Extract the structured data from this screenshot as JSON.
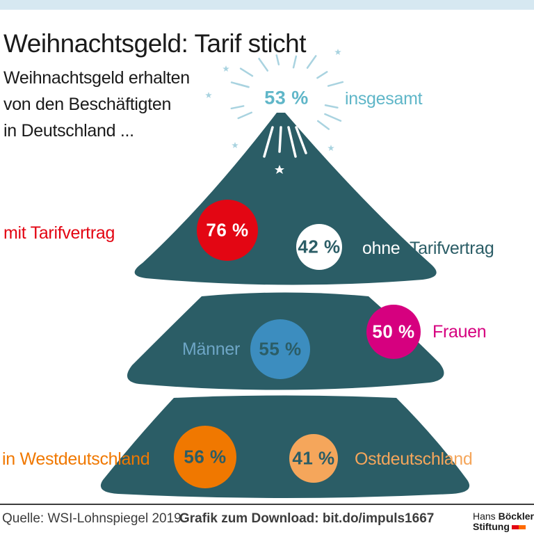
{
  "header": {
    "title": "Weihnachtsgeld: Tarif sticht",
    "subtitle_lines": [
      "Weihnachtsgeld erhalten",
      "von den Beschäftigten",
      "in Deutschland  ..."
    ]
  },
  "colors": {
    "tree": "#2b5d66",
    "overall": "#5fb6c8",
    "with_tariff": "#e30613",
    "without_tariff_circle": "#ffffff",
    "without_tariff_text": "#2b5d66",
    "men": "#3c8dbf",
    "men_label": "#6ea6c6",
    "women": "#d6007f",
    "west": "#f07800",
    "east": "#f5a65b"
  },
  "overall": {
    "value": "53 %",
    "label": "insgesamt"
  },
  "tariff": {
    "with": {
      "value": "76 %",
      "label": "mit Tarifvertrag"
    },
    "without": {
      "value": "42 %",
      "label_a": "ohne",
      "label_b": "Tarifvertrag"
    }
  },
  "gender": {
    "men": {
      "value": "55 %",
      "label": "Männer"
    },
    "women": {
      "value": "50 %",
      "label": "Frauen"
    }
  },
  "region": {
    "west": {
      "value": "56 %",
      "label": "in Westdeutschland"
    },
    "east": {
      "value": "41 %",
      "label": "Ostdeutschland"
    }
  },
  "footer": {
    "source": "Quelle: WSI-Lohnspiegel 2019",
    "download": "Grafik zum Download: bit.do/impuls1667",
    "logo_line1_a": "Hans ",
    "logo_line1_b": "Böckler",
    "logo_line2": "Stiftung"
  }
}
